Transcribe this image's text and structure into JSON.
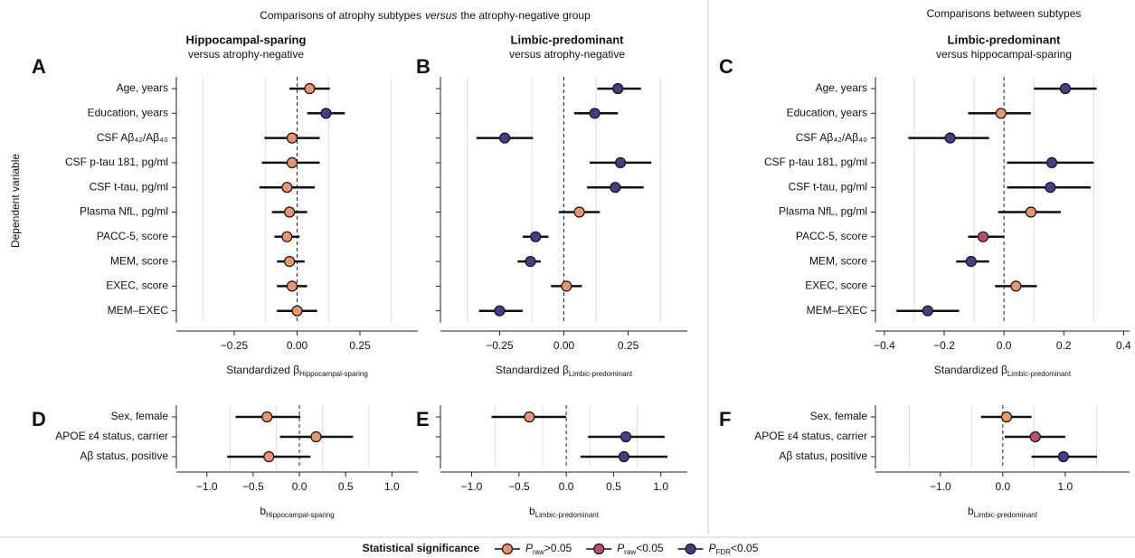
{
  "figure": {
    "header_left": [
      "Comparisons of atrophy subtypes",
      "versus",
      "the atrophy-negative group"
    ],
    "header_right": "Comparisons between subtypes",
    "ylabel": "Dependent variable",
    "legend": {
      "title": "Statistical significance",
      "entries": [
        {
          "symbol": "P",
          "sub": "raw",
          "text": ">0.05",
          "color": "#f0936b"
        },
        {
          "symbol": "P",
          "sub": "raw",
          "text": "<0.05",
          "color": "#c4477a"
        },
        {
          "symbol": "P",
          "sub": "FDR",
          "text": "<0.05",
          "color": "#4a3a8c"
        }
      ]
    }
  },
  "chart_data": [
    {
      "type": "forest",
      "label": "A",
      "title": "Hippocampal-sparing",
      "subtitle": "versus atrophy-negative",
      "categories": [
        "Age, years",
        "Education, years",
        "CSF Aβ₄₂/Aβ₄₀",
        "CSF p-tau 181, pg/ml",
        "CSF t-tau, pg/ml",
        "Plasma NfL, pg/ml",
        "PACC-5, score",
        "MEM, score",
        "EXEC, score",
        "MEM–EXEC"
      ],
      "values": [
        0.05,
        0.115,
        -0.02,
        -0.02,
        -0.04,
        -0.03,
        -0.04,
        -0.03,
        -0.02,
        0
      ],
      "lower": [
        -0.03,
        0.04,
        -0.13,
        -0.14,
        -0.15,
        -0.1,
        -0.09,
        -0.08,
        -0.08,
        -0.08
      ],
      "upper": [
        0.13,
        0.19,
        0.09,
        0.09,
        0.07,
        0.04,
        0.01,
        0.03,
        0.04,
        0.08
      ],
      "colors": [
        "#f0936b",
        "#4a3a8c",
        "#f0936b",
        "#f0936b",
        "#f0936b",
        "#f0936b",
        "#f0936b",
        "#f0936b",
        "#f0936b",
        "#f0936b"
      ],
      "xlim": [
        -0.48,
        0.48
      ],
      "xticks": [
        {
          "value": -0.25,
          "label": "−0.25"
        },
        {
          "value": 0,
          "label": "0.00"
        },
        0.25
      ],
      "grid_lines": [
        -0.375,
        -0.125,
        0.125,
        0.375
      ],
      "xlabel": "Standardized β",
      "xlabel_sub": "Hippocampal-sparing"
    },
    {
      "type": "forest",
      "label": "B",
      "title": "Limbic-predominant",
      "subtitle": "versus atrophy-negative",
      "categories": [
        null,
        null,
        null,
        null,
        null,
        null,
        null,
        null,
        null,
        null
      ],
      "values": [
        0.21,
        0.12,
        -0.23,
        0.22,
        0.2,
        0.06,
        -0.11,
        -0.13,
        0.01,
        -0.25
      ],
      "lower": [
        0.13,
        0.04,
        -0.34,
        0.1,
        0.09,
        -0.02,
        -0.16,
        -0.18,
        -0.05,
        -0.33
      ],
      "upper": [
        0.3,
        0.21,
        -0.12,
        0.34,
        0.31,
        0.14,
        -0.06,
        -0.09,
        0.07,
        -0.16
      ],
      "colors": [
        "#4a3a8c",
        "#4a3a8c",
        "#4a3a8c",
        "#4a3a8c",
        "#4a3a8c",
        "#f0936b",
        "#4a3a8c",
        "#4a3a8c",
        "#f0936b",
        "#4a3a8c"
      ],
      "xlim": [
        -0.48,
        0.48
      ],
      "xticks": [
        {
          "value": -0.25,
          "label": "−0.25"
        },
        {
          "value": 0,
          "label": "0.00"
        },
        0.25
      ],
      "grid_lines": [
        -0.375,
        -0.125,
        0.125,
        0.375
      ],
      "xlabel": "Standardized β",
      "xlabel_sub": "Limbic-predominant"
    },
    {
      "type": "forest",
      "label": "C",
      "title": "Limbic-predominant",
      "subtitle": "versus hippocampal-sparing",
      "categories": [
        "Age, years",
        "Education, years",
        "CSF Aβ₄₂/Aβ₄₀",
        "CSF p-tau 181, pg/ml",
        "CSF t-tau, pg/ml",
        "Plasma NfL, pg/ml",
        "PACC-5, score",
        "MEM, score",
        "EXEC, score",
        "MEM–EXEC"
      ],
      "values": [
        0.205,
        -0.01,
        -0.18,
        0.16,
        0.155,
        0.09,
        -0.07,
        -0.11,
        0.04,
        -0.255
      ],
      "lower": [
        0.1,
        -0.12,
        -0.32,
        0.01,
        0.01,
        -0.02,
        -0.12,
        -0.16,
        -0.03,
        -0.36
      ],
      "upper": [
        0.31,
        0.09,
        -0.05,
        0.3,
        0.29,
        0.19,
        0,
        -0.05,
        0.11,
        -0.15
      ],
      "colors": [
        "#4a3a8c",
        "#f0936b",
        "#4a3a8c",
        "#4a3a8c",
        "#4a3a8c",
        "#f0936b",
        "#c4477a",
        "#4a3a8c",
        "#f0936b",
        "#4a3a8c"
      ],
      "xlim": [
        -0.43,
        0.42
      ],
      "xticks": [
        {
          "value": -0.4,
          "label": "−0.4"
        },
        {
          "value": -0.2,
          "label": "−0.2"
        },
        {
          "value": 0,
          "label": "0.0"
        },
        0.2,
        0.4
      ],
      "grid_lines": [
        -0.3,
        -0.1,
        0.1,
        0.3
      ],
      "xlabel": "Standardized β",
      "xlabel_sub": "Limbic-predominant"
    },
    {
      "type": "forest",
      "label": "D",
      "categories": [
        "Sex, female",
        "APOE ε4 status, carrier",
        "Aβ status, positive"
      ],
      "values": [
        -0.35,
        0.18,
        -0.33
      ],
      "lower": [
        -0.69,
        -0.21,
        -0.78
      ],
      "upper": [
        0.01,
        0.58,
        0.12
      ],
      "colors": [
        "#f0936b",
        "#f0936b",
        "#f0936b"
      ],
      "xlim": [
        -1.33,
        1.28
      ],
      "xticks": [
        {
          "value": -1,
          "label": "−1.0"
        },
        {
          "value": -0.5,
          "label": "−0.5"
        },
        {
          "value": 0,
          "label": "0.0"
        },
        0.5,
        {
          "value": 1,
          "label": "1.0"
        }
      ],
      "grid_lines": [
        -0.75,
        -0.25,
        0.25,
        0.75
      ],
      "xlabel": "b",
      "xlabel_sub": "Hippocampal-sparing"
    },
    {
      "type": "forest",
      "label": "E",
      "categories": [
        null,
        null,
        null
      ],
      "values": [
        -0.39,
        0.63,
        0.61
      ],
      "lower": [
        -0.79,
        0.23,
        0.15
      ],
      "upper": [
        0,
        1.04,
        1.07
      ],
      "colors": [
        "#f0936b",
        "#4a3a8c",
        "#4a3a8c"
      ],
      "xlim": [
        -1.33,
        1.28
      ],
      "xticks": [
        {
          "value": -1,
          "label": "−1.0"
        },
        {
          "value": -0.5,
          "label": "−0.5"
        },
        {
          "value": 0,
          "label": "0.0"
        },
        0.5,
        {
          "value": 1,
          "label": "1.0"
        }
      ],
      "grid_lines": [
        -0.75,
        -0.25,
        0.25,
        0.75
      ],
      "xlabel": "b",
      "xlabel_sub": "Limbic-predominant"
    },
    {
      "type": "forest",
      "label": "F",
      "categories": [
        "Sex, female",
        "APOE ε4 status, carrier",
        "Aβ status, positive"
      ],
      "values": [
        0.06,
        0.52,
        0.97
      ],
      "lower": [
        -0.35,
        0.03,
        0.46
      ],
      "upper": [
        0.46,
        1,
        1.51
      ],
      "colors": [
        "#f0936b",
        "#c4477a",
        "#4a3a8c"
      ],
      "xlim": [
        -2.04,
        2.03
      ],
      "xticks": [
        {
          "value": -1,
          "label": "−1.0"
        },
        {
          "value": 0,
          "label": "0.0"
        },
        {
          "value": 1,
          "label": "1.0"
        }
      ],
      "grid_lines": [
        -1.5,
        -0.5,
        0.5,
        1.5
      ],
      "xlabel": "b",
      "xlabel_sub": "Limbic-predominant"
    }
  ]
}
